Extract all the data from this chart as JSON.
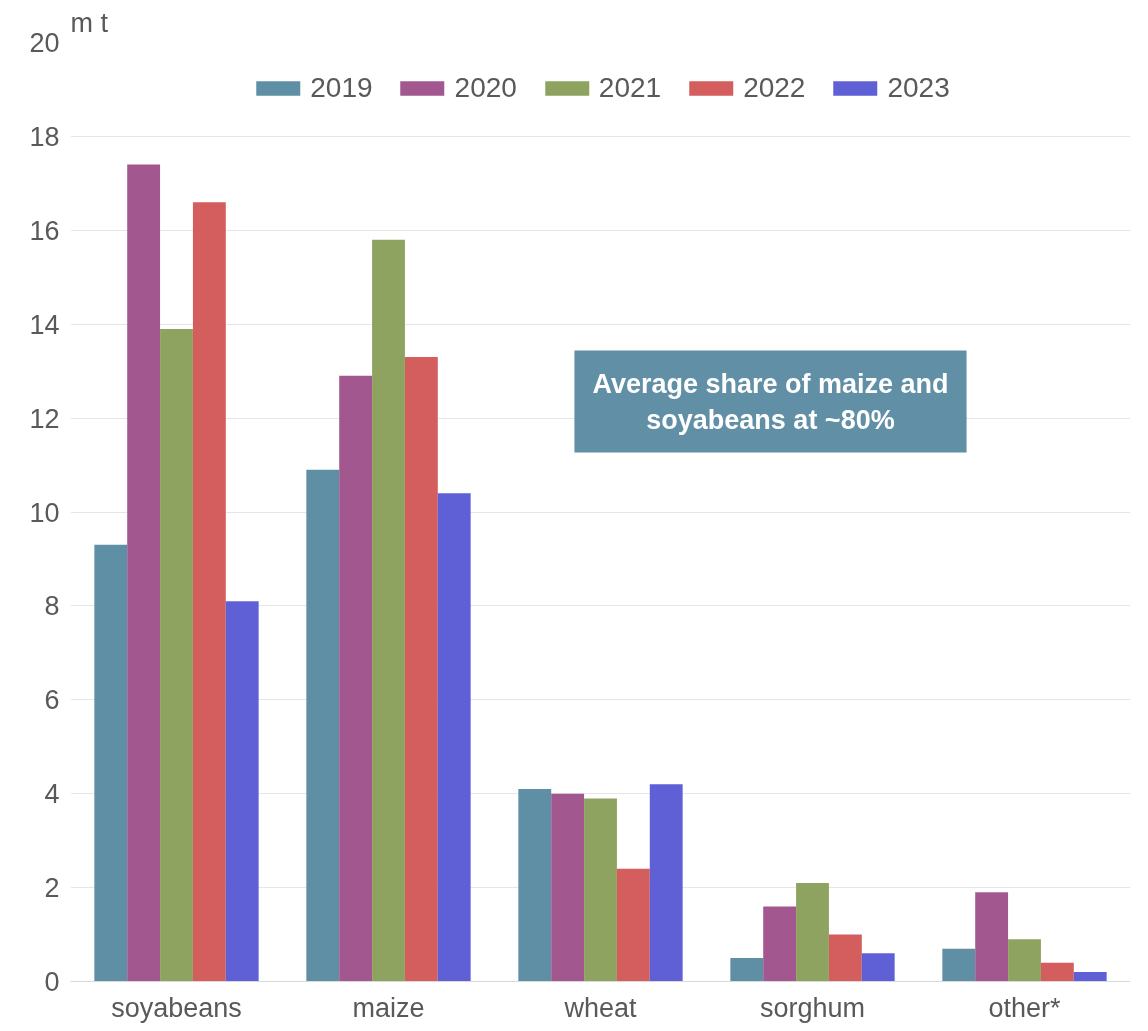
{
  "chart_data": {
    "type": "bar",
    "ylabel": "m t",
    "categories": [
      "soyabeans",
      "maize",
      "wheat",
      "sorghum",
      "other*"
    ],
    "series": [
      {
        "name": "2019",
        "color": "#5f8fa5",
        "values": [
          9.3,
          10.9,
          4.1,
          0.5,
          0.7
        ]
      },
      {
        "name": "2020",
        "color": "#a2578f",
        "values": [
          17.4,
          12.9,
          4.0,
          1.6,
          1.9
        ]
      },
      {
        "name": "2021",
        "color": "#8fa361",
        "values": [
          13.9,
          15.8,
          3.9,
          2.1,
          0.9
        ]
      },
      {
        "name": "2022",
        "color": "#d45d5e",
        "values": [
          16.6,
          13.3,
          2.4,
          1.0,
          0.4
        ]
      },
      {
        "name": "2023",
        "color": "#5f5fd6",
        "values": [
          8.1,
          10.4,
          4.2,
          0.6,
          0.2
        ]
      }
    ],
    "ylim": [
      0,
      20
    ],
    "yticks": [
      0,
      2,
      4,
      6,
      8,
      10,
      12,
      14,
      16,
      18,
      20
    ],
    "grid": "y",
    "legend": "top",
    "annotations": [
      "Average share of maize and soyabeans at ~80%"
    ]
  }
}
